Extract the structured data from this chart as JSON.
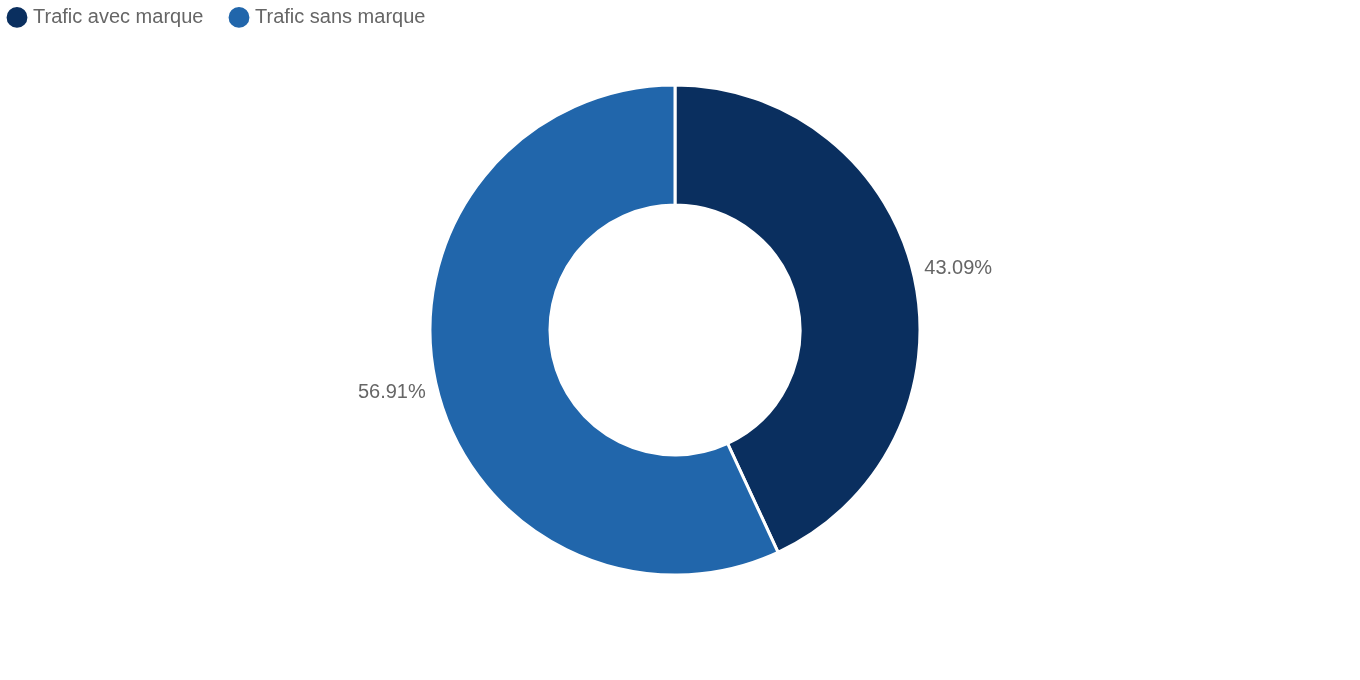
{
  "chart_data": {
    "type": "donut",
    "categories": [
      "Trafic avec marque",
      "Trafic sans marque"
    ],
    "values": [
      43.09,
      56.91
    ],
    "colors": [
      "#0a2f5f",
      "#2166ab"
    ],
    "value_labels": [
      "43.09%",
      "56.91%"
    ],
    "legend": "top"
  }
}
